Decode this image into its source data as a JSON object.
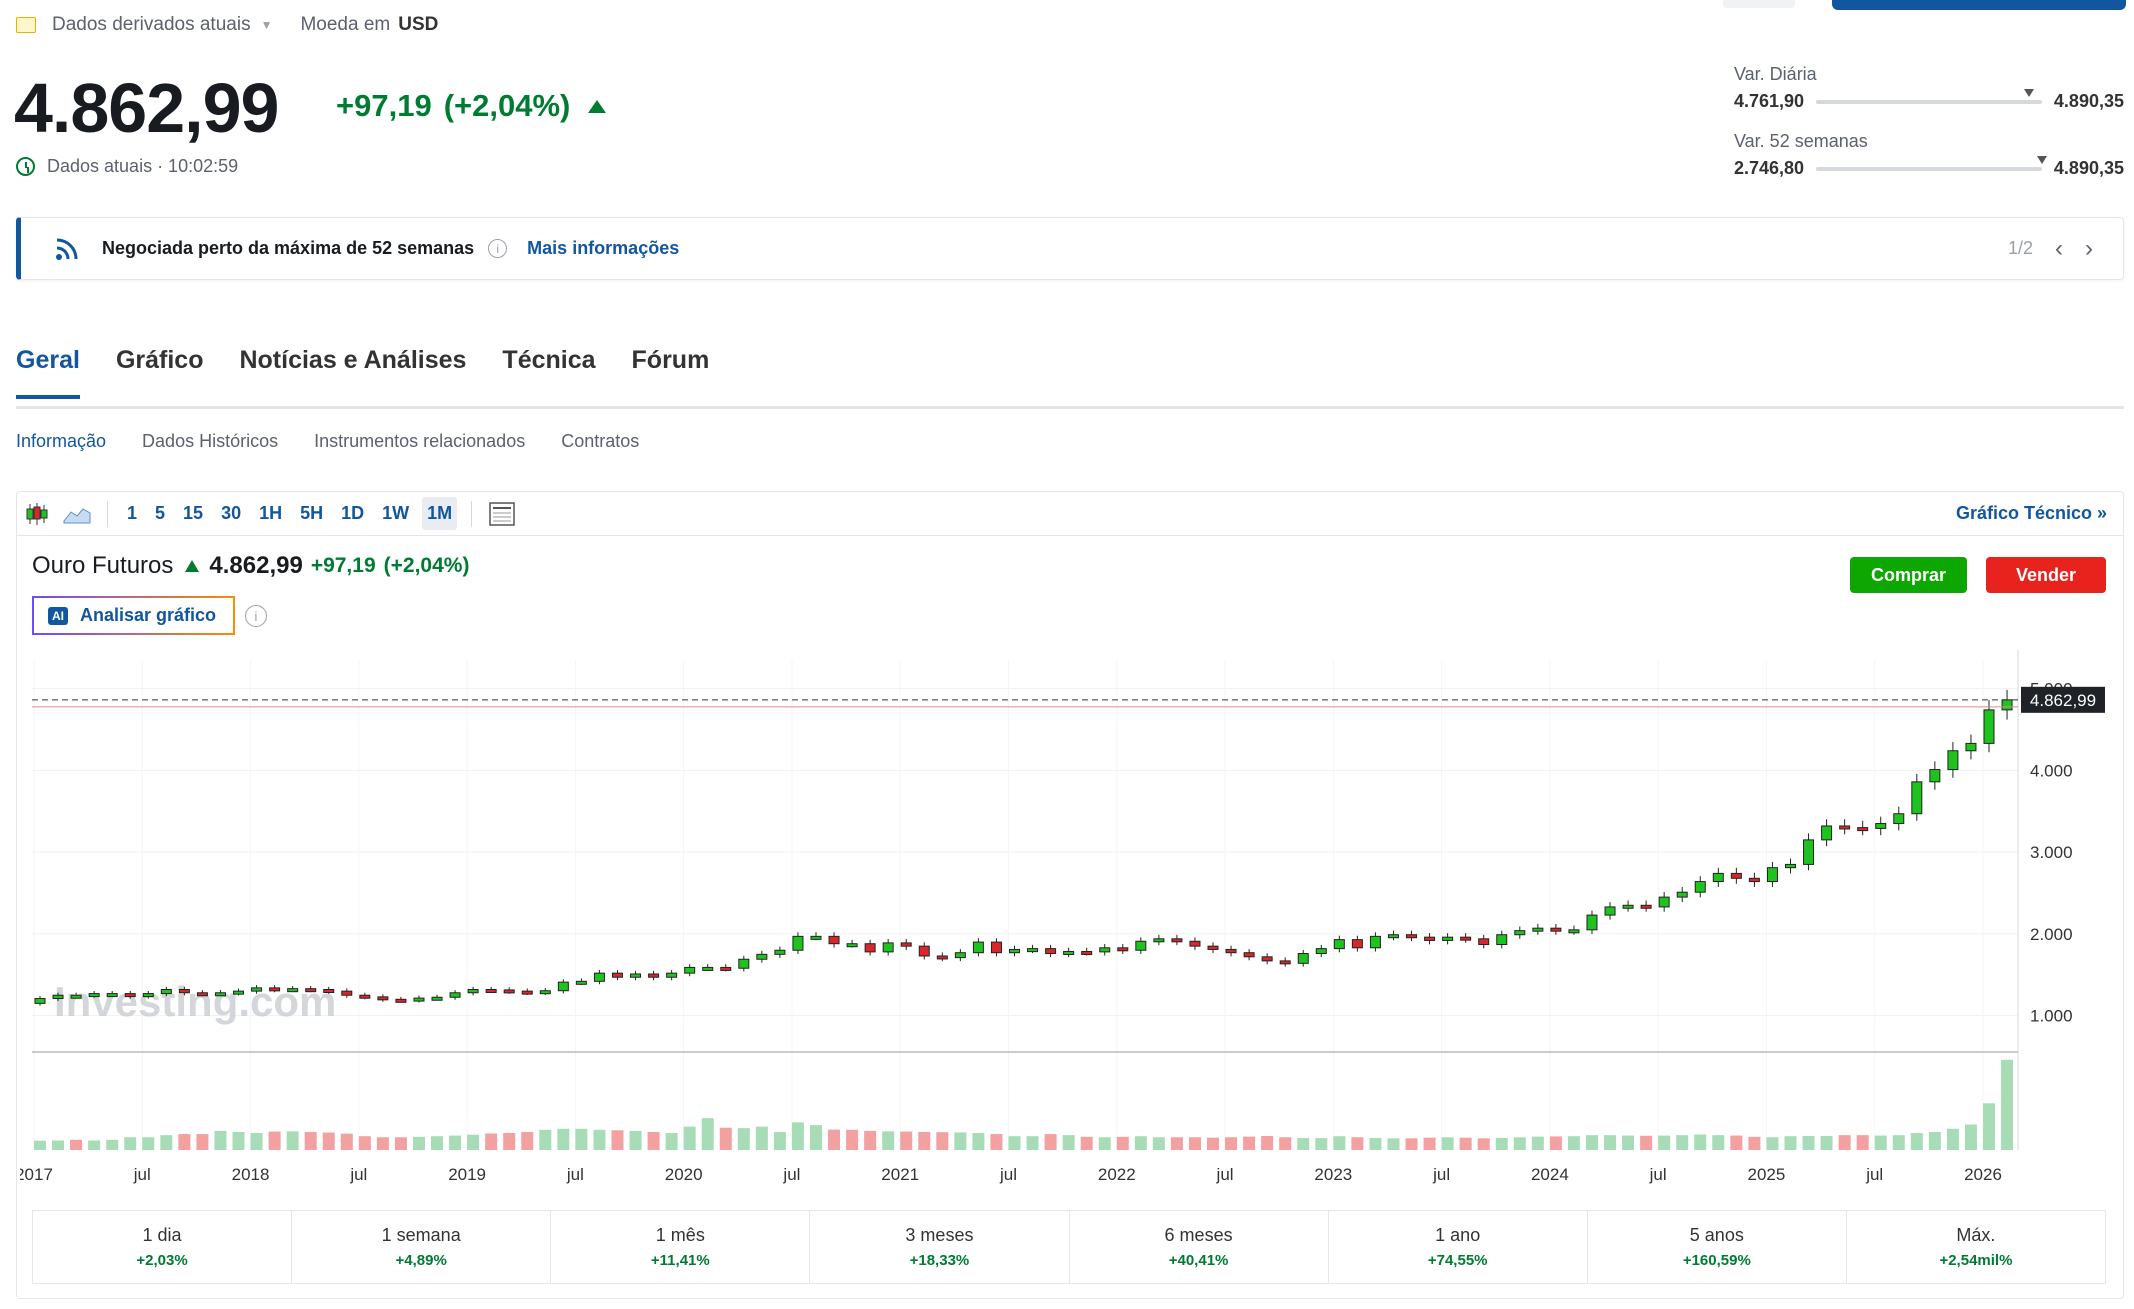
{
  "topbar": {
    "data_label": "Dados derivados atuais",
    "currency_prefix": "Moeda em",
    "currency": "USD"
  },
  "quote": {
    "price": "4.862,99",
    "change": "+97,19",
    "change_pct": "(+2,04%)",
    "status": "Dados atuais · 10:02:59"
  },
  "ranges": {
    "day": {
      "label": "Var. Diária",
      "low": "4.761,90",
      "high": "4.890,35",
      "position": 0.92
    },
    "week52": {
      "label": "Var. 52 semanas",
      "low": "2.746,80",
      "high": "4.890,35",
      "position": 0.98
    }
  },
  "alert": {
    "text": "Negociada perto da máxima de 52 semanas",
    "link": "Mais informações",
    "pager": "1/2"
  },
  "tabs": [
    {
      "label": "Geral"
    },
    {
      "label": "Gráfico"
    },
    {
      "label": "Notícias e Análises"
    },
    {
      "label": "Técnica"
    },
    {
      "label": "Fórum"
    }
  ],
  "subtabs": [
    {
      "label": "Informação"
    },
    {
      "label": "Dados Históricos"
    },
    {
      "label": "Instrumentos relacionados"
    },
    {
      "label": "Contratos"
    }
  ],
  "toolbar": {
    "intervals": [
      "1",
      "5",
      "15",
      "30",
      "1H",
      "5H",
      "1D",
      "1W",
      "1M"
    ],
    "active_interval": "1M",
    "technical_link": "Gráfico Técnico »"
  },
  "chart_header": {
    "name": "Ouro Futuros",
    "last": "4.862,99",
    "change": "+97,19",
    "change_pct": "(+2,04%)",
    "buy": "Comprar",
    "sell": "Vender",
    "ai_badge": "AI",
    "ai_label": "Analisar gráfico",
    "watermark": "Investing.com"
  },
  "colors": {
    "up": "#1ec31e",
    "down": "#d8262a",
    "vol_up": "#a7dcb6",
    "vol_down": "#f2a0a0",
    "accent": "#1256a0",
    "positive": "#007c32"
  },
  "chart_data": {
    "type": "candlestick",
    "title": "Ouro Futuros",
    "interval": "1M",
    "y_ticks": [
      1000,
      2000,
      3000,
      4000,
      5000
    ],
    "y_tick_labels": [
      "1.000",
      "2.000",
      "3.000",
      "4.000",
      "5.000"
    ],
    "ylim": [
      580,
      5350
    ],
    "last_price_label": "4.862,99",
    "last_price": 4862.99,
    "x_labels": [
      "2017",
      "jul",
      "2018",
      "jul",
      "2019",
      "jul",
      "2020",
      "jul",
      "2021",
      "jul",
      "2022",
      "jul",
      "2023",
      "jul",
      "2024",
      "jul",
      "2025",
      "jul",
      "2026"
    ],
    "start": "2017-01",
    "close": [
      1210,
      1250,
      1250,
      1270,
      1270,
      1240,
      1270,
      1320,
      1280,
      1270,
      1280,
      1300,
      1340,
      1320,
      1330,
      1320,
      1300,
      1250,
      1230,
      1200,
      1190,
      1215,
      1225,
      1280,
      1320,
      1315,
      1300,
      1285,
      1305,
      1410,
      1420,
      1520,
      1470,
      1510,
      1470,
      1520,
      1590,
      1590,
      1580,
      1690,
      1750,
      1800,
      1970,
      1970,
      1880,
      1880,
      1780,
      1890,
      1850,
      1730,
      1710,
      1770,
      1900,
      1770,
      1810,
      1820,
      1760,
      1785,
      1780,
      1830,
      1800,
      1910,
      1940,
      1910,
      1850,
      1810,
      1770,
      1720,
      1670,
      1640,
      1760,
      1820,
      1930,
      1830,
      1970,
      1990,
      1960,
      1920,
      1960,
      1940,
      1870,
      1990,
      2040,
      2070,
      2040,
      2050,
      2230,
      2330,
      2350,
      2330,
      2450,
      2510,
      2640,
      2740,
      2680,
      2640,
      2810,
      2850,
      3150,
      3320,
      3300,
      3290,
      3350,
      3470,
      3860,
      4010,
      4240,
      4330,
      4740,
      4862.99
    ],
    "volume": [
      44,
      45,
      48,
      45,
      48,
      60,
      60,
      70,
      75,
      75,
      90,
      85,
      80,
      87,
      88,
      85,
      82,
      77,
      65,
      60,
      60,
      62,
      65,
      68,
      72,
      78,
      80,
      85,
      95,
      100,
      100,
      95,
      93,
      90,
      85,
      80,
      110,
      150,
      105,
      103,
      110,
      85,
      130,
      117,
      96,
      95,
      90,
      88,
      87,
      85,
      84,
      83,
      80,
      75,
      65,
      65,
      75,
      70,
      62,
      60,
      62,
      65,
      60,
      60,
      60,
      58,
      60,
      63,
      66,
      60,
      57,
      56,
      65,
      60,
      57,
      55,
      55,
      58,
      60,
      58,
      55,
      57,
      60,
      63,
      64,
      65,
      70,
      70,
      68,
      67,
      68,
      70,
      73,
      70,
      68,
      62,
      60,
      65,
      66,
      66,
      70,
      70,
      68,
      70,
      80,
      85,
      100,
      120,
      220,
      425
    ],
    "vol_up": [
      true,
      true,
      false,
      true,
      true,
      true,
      true,
      true,
      false,
      false,
      true,
      true,
      true,
      false,
      true,
      false,
      false,
      false,
      false,
      false,
      false,
      true,
      true,
      true,
      true,
      false,
      false,
      false,
      true,
      true,
      true,
      true,
      false,
      true,
      false,
      true,
      true,
      true,
      false,
      true,
      true,
      true,
      true,
      true,
      false,
      false,
      false,
      true,
      false,
      false,
      false,
      true,
      true,
      false,
      true,
      true,
      false,
      true,
      false,
      true,
      false,
      true,
      true,
      false,
      false,
      false,
      false,
      false,
      false,
      false,
      true,
      true,
      true,
      false,
      true,
      true,
      false,
      false,
      true,
      false,
      false,
      true,
      true,
      true,
      false,
      true,
      true,
      true,
      true,
      false,
      true,
      true,
      true,
      true,
      false,
      false,
      true,
      true,
      true,
      true,
      false,
      false,
      true,
      true,
      true,
      true,
      true,
      true,
      true,
      true
    ]
  },
  "performance": [
    {
      "period": "1 dia",
      "value": "+2,03%"
    },
    {
      "period": "1 semana",
      "value": "+4,89%"
    },
    {
      "period": "1 mês",
      "value": "+11,41%"
    },
    {
      "period": "3 meses",
      "value": "+18,33%"
    },
    {
      "period": "6 meses",
      "value": "+40,41%"
    },
    {
      "period": "1 ano",
      "value": "+74,55%"
    },
    {
      "period": "5 anos",
      "value": "+160,59%"
    },
    {
      "period": "Máx.",
      "value": "+2,54mil%"
    }
  ]
}
